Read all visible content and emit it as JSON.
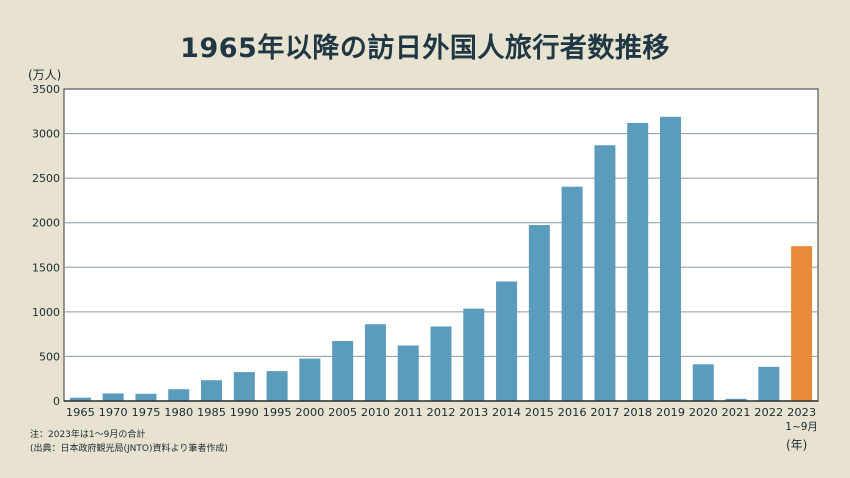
{
  "chart_data": {
    "type": "bar",
    "title": "1965年以降の訪日外国人旅行者数推移",
    "ylabel": "(万人)",
    "xlabel": "(年)",
    "ylim": [
      0,
      3500
    ],
    "yticks": [
      0,
      500,
      1000,
      1500,
      2000,
      2500,
      3000,
      3500
    ],
    "grid": true,
    "categories": [
      "1965",
      "1970",
      "1975",
      "1980",
      "1985",
      "1990",
      "1995",
      "2000",
      "2005",
      "2010",
      "2011",
      "2012",
      "2013",
      "2014",
      "2015",
      "2016",
      "2017",
      "2018",
      "2019",
      "2020",
      "2021",
      "2022",
      "2023"
    ],
    "last_category_sublabel": "1~9月",
    "values": [
      37,
      85,
      81,
      132,
      233,
      324,
      335,
      476,
      673,
      861,
      622,
      836,
      1036,
      1341,
      1974,
      2404,
      2869,
      3119,
      3188,
      412,
      25,
      383,
      1737
    ],
    "colors": {
      "bar": "#5b9bbb",
      "highlight": "#e88a3a",
      "highlight_index": 22
    },
    "notes": [
      "注：2023年は1～9月の合計",
      "(出典：日本政府観光局(JNTO)資料より筆者作成)"
    ]
  }
}
